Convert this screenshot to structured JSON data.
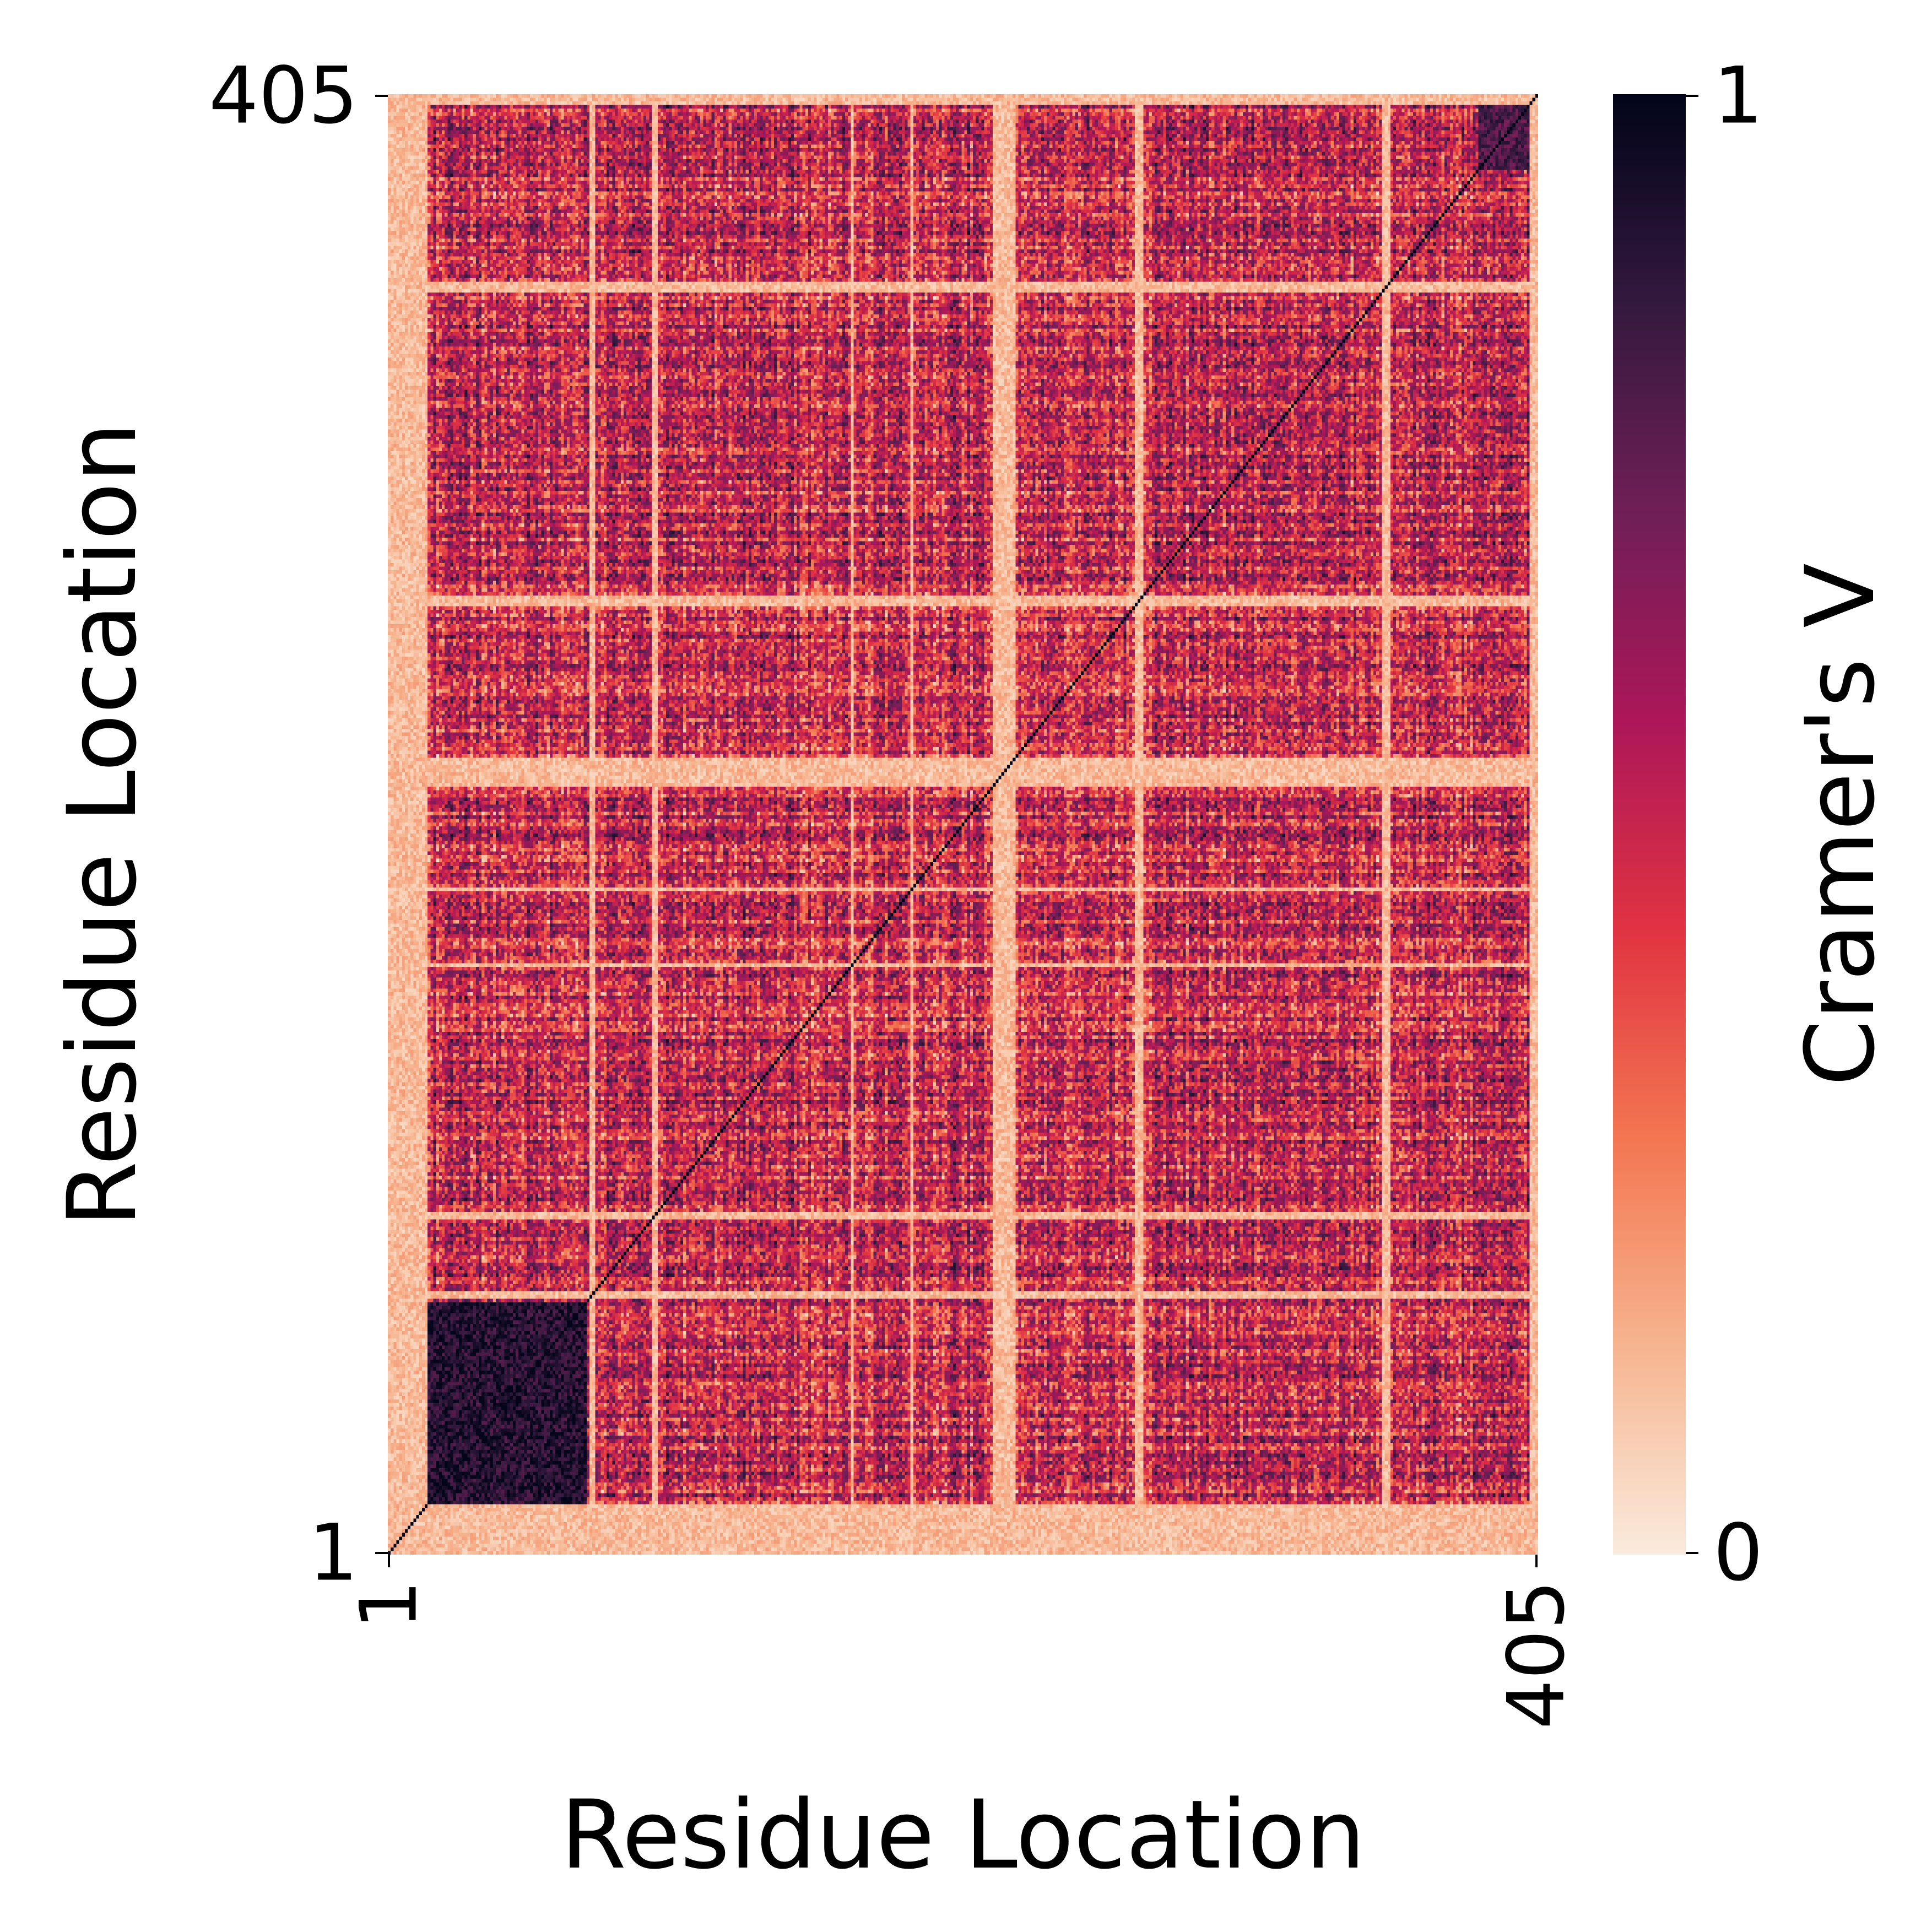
{
  "chart_data": {
    "type": "heatmap",
    "title": "",
    "xlabel": "Residue Location",
    "ylabel": "Residue Location",
    "x_tick_labels": [
      "1",
      "405"
    ],
    "y_tick_labels": [
      "1",
      "405"
    ],
    "x_range": [
      1,
      405
    ],
    "y_range": [
      1,
      405
    ],
    "n_rows": 405,
    "n_cols": 405,
    "symmetric": true,
    "diagonal_value": 1,
    "colorbar": {
      "label": "Cramer's V",
      "range": [
        0,
        1
      ],
      "tick_labels": [
        "0",
        "1"
      ],
      "colormap": "rocket_r",
      "colors": [
        "#faebdd",
        "#f6b48f",
        "#f37651",
        "#e13342",
        "#ad1759",
        "#701f57",
        "#35193e",
        "#03051a"
      ]
    },
    "blocks_of_high_values": [
      {
        "from": 1,
        "to": 70,
        "value": 0.9
      },
      {
        "from": 385,
        "to": 405,
        "value": 0.8
      }
    ],
    "low_value_residue_lines": [
      1,
      2,
      3,
      4,
      5,
      6,
      7,
      8,
      9,
      10,
      11,
      12,
      13,
      14,
      72,
      73,
      94,
      95,
      164,
      185,
      214,
      215,
      216,
      217,
      218,
      219,
      220,
      221,
      264,
      265,
      266,
      351,
      352,
      353,
      403,
      404,
      405
    ],
    "grid": false,
    "legend": "none"
  }
}
